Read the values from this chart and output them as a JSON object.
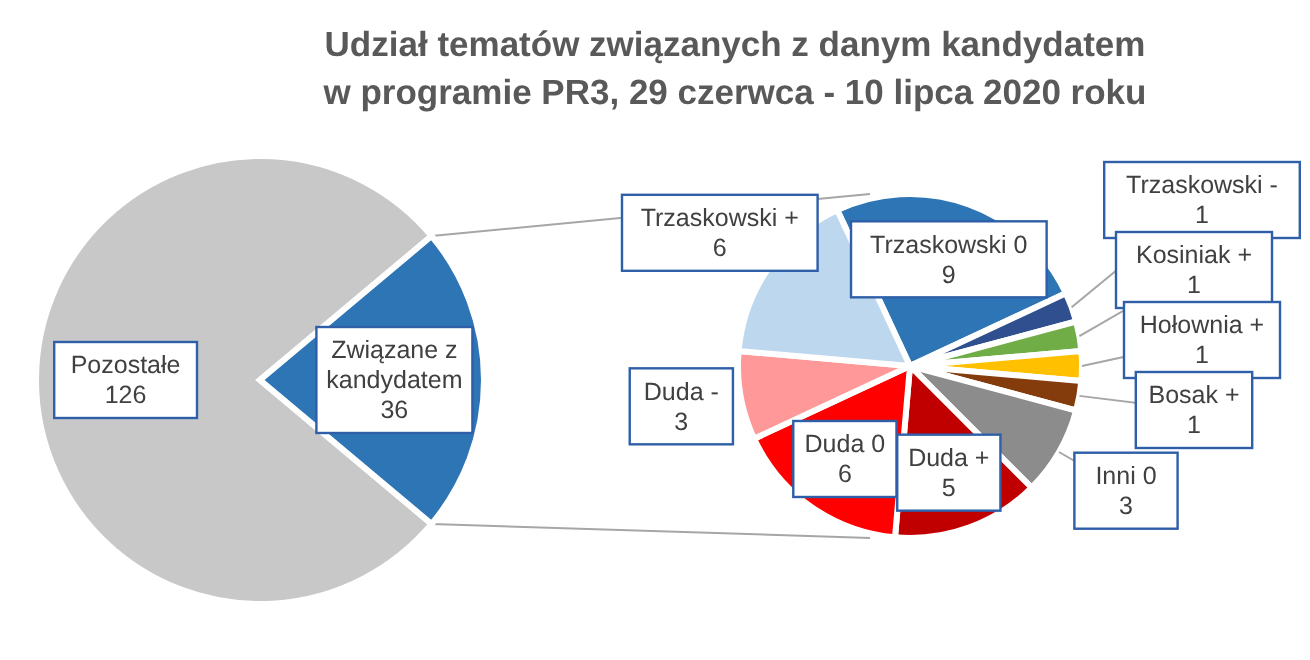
{
  "chart_data": [
    {
      "type": "pie",
      "title": "Udział tematów związanych z danym kandydatem\nw programie PR3, 29 czerwca - 10 lipca 2020 roku",
      "categories": [
        "Pozostałe",
        "Związane z kandydatem"
      ],
      "values": [
        126,
        36
      ],
      "colors": [
        "#c8c8c8",
        "#2e75b6"
      ],
      "data_labels": true
    },
    {
      "type": "pie",
      "categories": [
        "Trzaskowski 0",
        "Trzaskowski -",
        "Kosiniak +",
        "Hołownia +",
        "Bosak +",
        "Inni 0",
        "Duda +",
        "Duda 0",
        "Duda -",
        "Trzaskowski +"
      ],
      "values": [
        9,
        1,
        1,
        1,
        1,
        3,
        5,
        6,
        3,
        6
      ],
      "colors": [
        "#2e75b6",
        "#2f4f8f",
        "#70ad47",
        "#ffc000",
        "#843c0c",
        "#8c8c8c",
        "#c00000",
        "#ff0000",
        "#ff9999",
        "#bdd7ee"
      ],
      "data_labels": true
    }
  ]
}
